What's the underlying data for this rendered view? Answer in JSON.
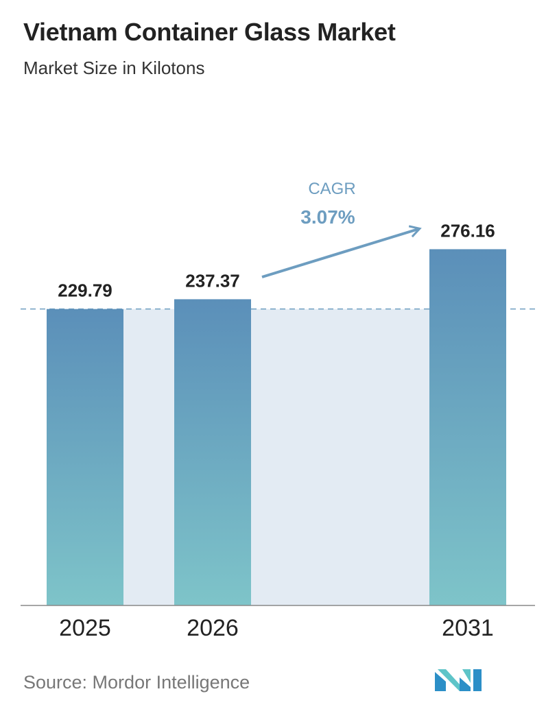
{
  "title": "Vietnam Container Glass Market",
  "subtitle": "Market Size in Kilotons",
  "source": "Source:  Mordor Intelligence",
  "logo_icon": "mordor-intelligence-logo-icon",
  "colors": {
    "bar_top": "#5b8fb9",
    "bar_bottom": "#7ec4c9",
    "band": "#e3ebf3",
    "dashed_line": "#6d9dc0",
    "cagr_text": "#6d9dc0",
    "axis": "#888888"
  },
  "chart_data": {
    "type": "bar",
    "categories": [
      "2025",
      "2026",
      "2031"
    ],
    "values": [
      229.79,
      237.37,
      276.16
    ],
    "value_labels": [
      "229.79",
      "237.37",
      "276.16"
    ],
    "annotation": {
      "label": "CAGR",
      "value": "3.07%"
    },
    "reference_line_value": 229.79,
    "grid": false
  }
}
